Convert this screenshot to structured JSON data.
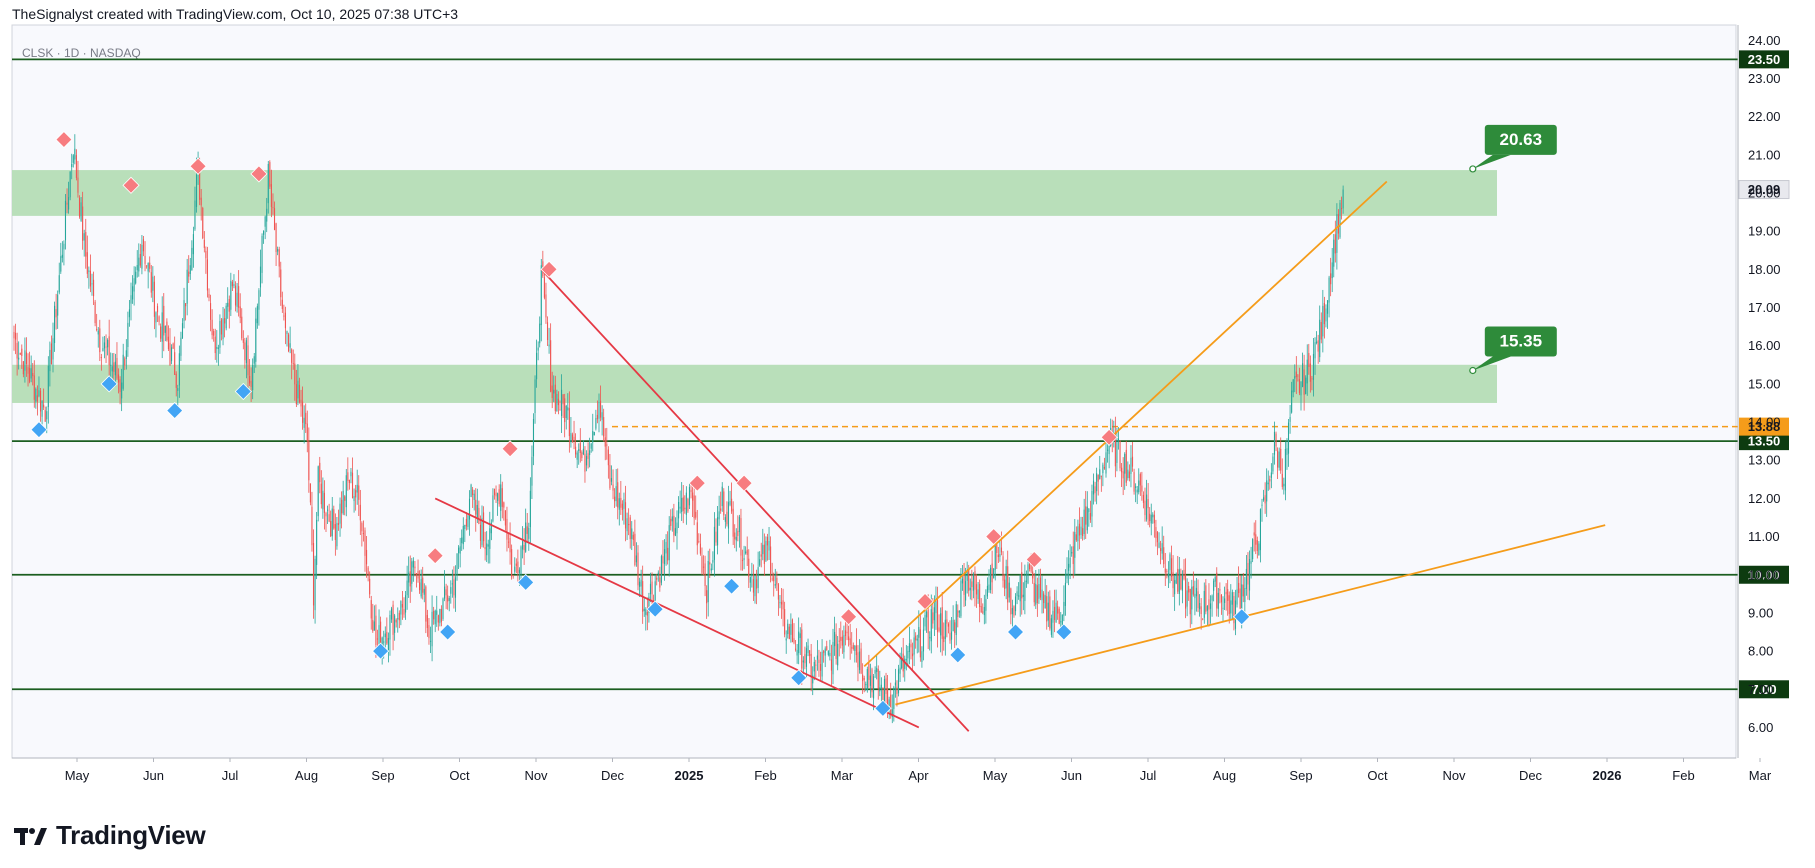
{
  "header": {
    "attribution": "TheSignalyst created with TradingView.com, Oct 10, 2025 07:38 UTC+3"
  },
  "logo": {
    "text": "TradingView"
  },
  "colors": {
    "candle_up": "#26a69a",
    "candle_down": "#ef5350",
    "zone": "#b5ddb6",
    "level_line": "#1b5e20",
    "orange": "#f59c1a",
    "red_line": "#e53945",
    "marker_red": "#f77c80",
    "marker_blue": "#42a5f5",
    "callout": "#2e8b3a",
    "badge_dark": "#0d3b10"
  },
  "chart_data": {
    "type": "candlestick",
    "symbol_label": "CLSK · 1D · NASDAQ",
    "y_range": [
      5.2,
      24.4
    ],
    "y_ticks": [
      6.0,
      7.0,
      8.0,
      9.0,
      10.0,
      11.0,
      12.0,
      13.0,
      14.0,
      15.0,
      16.0,
      17.0,
      18.0,
      19.0,
      20.0,
      21.0,
      22.0,
      23.0,
      24.0
    ],
    "x_ticks": [
      {
        "label": "May",
        "bold": false
      },
      {
        "label": "Jun",
        "bold": false
      },
      {
        "label": "Jul",
        "bold": false
      },
      {
        "label": "Aug",
        "bold": false
      },
      {
        "label": "Sep",
        "bold": false
      },
      {
        "label": "Oct",
        "bold": false
      },
      {
        "label": "Nov",
        "bold": false
      },
      {
        "label": "Dec",
        "bold": false
      },
      {
        "label": "2025",
        "bold": true
      },
      {
        "label": "Feb",
        "bold": false
      },
      {
        "label": "Mar",
        "bold": false
      },
      {
        "label": "Apr",
        "bold": false
      },
      {
        "label": "May",
        "bold": false
      },
      {
        "label": "Jun",
        "bold": false
      },
      {
        "label": "Jul",
        "bold": false
      },
      {
        "label": "Aug",
        "bold": false
      },
      {
        "label": "Sep",
        "bold": false
      },
      {
        "label": "Oct",
        "bold": false
      },
      {
        "label": "Nov",
        "bold": false
      },
      {
        "label": "Dec",
        "bold": false
      },
      {
        "label": "2026",
        "bold": true
      },
      {
        "label": "Feb",
        "bold": false
      },
      {
        "label": "Mar",
        "bold": false
      }
    ],
    "price_path": [
      [
        0,
        16.2
      ],
      [
        20,
        14.3
      ],
      [
        38,
        21.3
      ],
      [
        45,
        18.6
      ],
      [
        55,
        16.2
      ],
      [
        68,
        15.0
      ],
      [
        82,
        18.8
      ],
      [
        92,
        16.8
      ],
      [
        105,
        15.2
      ],
      [
        118,
        20.6
      ],
      [
        128,
        16.0
      ],
      [
        140,
        17.6
      ],
      [
        152,
        15.2
      ],
      [
        163,
        20.4
      ],
      [
        174,
        16.2
      ],
      [
        188,
        13.5
      ],
      [
        192,
        9.6
      ],
      [
        195,
        12.4
      ],
      [
        205,
        11.2
      ],
      [
        215,
        12.5
      ],
      [
        222,
        11.8
      ],
      [
        232,
        8.2
      ],
      [
        242,
        8.8
      ],
      [
        250,
        9.2
      ],
      [
        258,
        10.4
      ],
      [
        266,
        8.5
      ],
      [
        274,
        9.1
      ],
      [
        282,
        9.8
      ],
      [
        292,
        12.1
      ],
      [
        302,
        10.9
      ],
      [
        312,
        12.4
      ],
      [
        320,
        9.9
      ],
      [
        330,
        11.6
      ],
      [
        338,
        17.8
      ],
      [
        345,
        14.8
      ],
      [
        355,
        14.2
      ],
      [
        365,
        12.9
      ],
      [
        375,
        14.6
      ],
      [
        382,
        12.4
      ],
      [
        394,
        11.4
      ],
      [
        404,
        9.2
      ],
      [
        414,
        10.1
      ],
      [
        424,
        11.4
      ],
      [
        434,
        12.1
      ],
      [
        444,
        9.7
      ],
      [
        454,
        12.0
      ],
      [
        464,
        11.2
      ],
      [
        474,
        9.9
      ],
      [
        484,
        10.7
      ],
      [
        492,
        8.8
      ],
      [
        502,
        8.2
      ],
      [
        512,
        7.5
      ],
      [
        524,
        7.9
      ],
      [
        534,
        8.7
      ],
      [
        544,
        7.6
      ],
      [
        552,
        7.2
      ],
      [
        562,
        6.7
      ],
      [
        570,
        7.6
      ],
      [
        580,
        8.2
      ],
      [
        590,
        9.0
      ],
      [
        600,
        8.3
      ],
      [
        610,
        10.1
      ],
      [
        620,
        9.2
      ],
      [
        630,
        10.7
      ],
      [
        640,
        9.2
      ],
      [
        650,
        10.0
      ],
      [
        660,
        9.1
      ],
      [
        670,
        8.9
      ],
      [
        680,
        10.8
      ],
      [
        690,
        11.8
      ],
      [
        702,
        13.5
      ],
      [
        712,
        12.9
      ],
      [
        722,
        12.3
      ],
      [
        732,
        11.2
      ],
      [
        742,
        10.0
      ],
      [
        752,
        9.4
      ],
      [
        762,
        9.2
      ],
      [
        772,
        9.6
      ],
      [
        782,
        9.1
      ],
      [
        792,
        10.2
      ],
      [
        800,
        11.5
      ],
      [
        808,
        13.4
      ],
      [
        814,
        12.6
      ],
      [
        820,
        14.8
      ],
      [
        830,
        15.3
      ],
      [
        838,
        16.4
      ],
      [
        846,
        18.6
      ],
      [
        852,
        20.09
      ]
    ],
    "zones": [
      {
        "from": 19.4,
        "to": 20.6
      },
      {
        "from": 14.5,
        "to": 15.5
      }
    ],
    "horizontal_levels": [
      {
        "value": 23.5,
        "label": "23.50"
      },
      {
        "value": 13.5,
        "label": "13.50"
      },
      {
        "value": 10.0,
        "label": "10.00"
      },
      {
        "value": 7.0,
        "label": "7.00"
      }
    ],
    "dashed_level": {
      "value": 13.88,
      "label": "13.88"
    },
    "current_price": {
      "value": 20.09,
      "label": "20.09"
    },
    "callouts": [
      {
        "label": "20.63",
        "x": 930,
        "y": 20.63
      },
      {
        "label": "15.35",
        "x": 930,
        "y": 15.35
      }
    ],
    "red_trendlines": [
      [
        [
          338,
          18.0
        ],
        [
          612,
          5.9
        ]
      ],
      [
        [
          270,
          12.0
        ],
        [
          580,
          6.0
        ]
      ]
    ],
    "orange_trendlines": [
      [
        [
          545,
          7.6
        ],
        [
          880,
          20.3
        ]
      ],
      [
        [
          565,
          6.6
        ],
        [
          1020,
          11.3
        ]
      ]
    ],
    "swing_highs": [
      [
        32,
        21.4
      ],
      [
        75,
        20.2
      ],
      [
        118,
        20.7
      ],
      [
        157,
        20.5
      ],
      [
        343,
        18.0
      ],
      [
        318,
        13.3
      ],
      [
        270,
        10.5
      ],
      [
        438,
        12.4
      ],
      [
        468,
        12.4
      ],
      [
        535,
        8.9
      ],
      [
        584,
        9.3
      ],
      [
        628,
        11.0
      ],
      [
        654,
        10.4
      ],
      [
        702,
        13.6
      ]
    ],
    "swing_lows": [
      [
        16,
        13.8
      ],
      [
        61,
        15.0
      ],
      [
        103,
        14.3
      ],
      [
        147,
        14.8
      ],
      [
        235,
        8.0
      ],
      [
        278,
        8.5
      ],
      [
        328,
        9.8
      ],
      [
        411,
        9.1
      ],
      [
        460,
        9.7
      ],
      [
        503,
        7.3
      ],
      [
        557,
        6.5
      ],
      [
        605,
        7.9
      ],
      [
        642,
        8.5
      ],
      [
        673,
        8.5
      ],
      [
        787,
        8.9
      ]
    ]
  }
}
